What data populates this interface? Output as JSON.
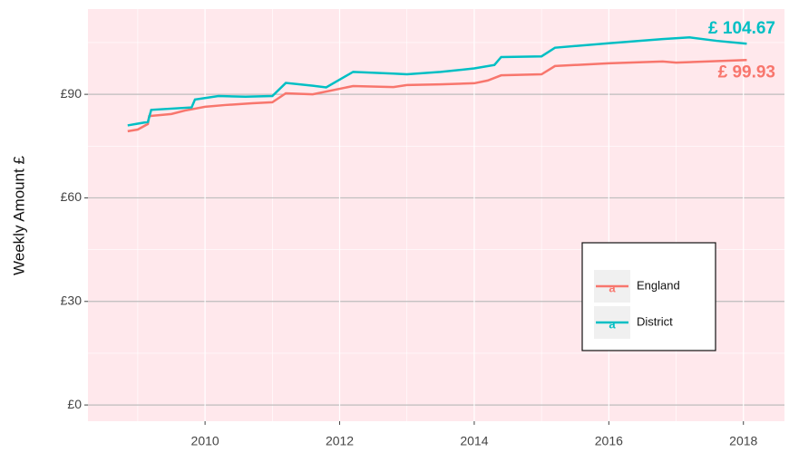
{
  "chart_data": {
    "type": "line",
    "y_label": "Weekly Amount £",
    "xlim": [
      2008.26,
      2018.61
    ],
    "xticks": [
      2010,
      2012,
      2014,
      2016,
      2018
    ],
    "ylim": [
      -4.7,
      114.7
    ],
    "yticks": [
      {
        "value": 0,
        "label": "£0"
      },
      {
        "value": 30,
        "label": "£30"
      },
      {
        "value": 60,
        "label": "£60"
      },
      {
        "value": 90,
        "label": "£90"
      }
    ],
    "grid": true,
    "legend": "bottom-right",
    "series": [
      {
        "name": "England",
        "color": "#f8766d",
        "x": [
          2008.85,
          2009.0,
          2009.15,
          2009.17,
          2009.5,
          2009.7,
          2010.0,
          2010.3,
          2010.7,
          2011.0,
          2011.2,
          2011.6,
          2012.2,
          2012.8,
          2013.0,
          2013.5,
          2014.0,
          2014.2,
          2014.4,
          2015.0,
          2015.2,
          2016.0,
          2016.8,
          2017.0,
          2018.05
        ],
        "values": [
          79.3,
          79.8,
          81.4,
          83.7,
          84.3,
          85.3,
          86.4,
          86.9,
          87.4,
          87.7,
          90.3,
          90,
          92.4,
          92.1,
          92.7,
          92.9,
          93.2,
          94,
          95.5,
          95.8,
          98.2,
          99,
          99.5,
          99.2,
          99.93
        ]
      },
      {
        "name": "District",
        "color": "#00bfc4",
        "x": [
          2008.85,
          2009.0,
          2009.15,
          2009.2,
          2009.8,
          2009.85,
          2010.2,
          2010.6,
          2011.0,
          2011.2,
          2011.6,
          2011.8,
          2012.2,
          2012.8,
          2013.0,
          2013.5,
          2014.0,
          2014.3,
          2014.4,
          2015.0,
          2015.2,
          2016.0,
          2016.8,
          2017.2,
          2017.6,
          2018.05
        ],
        "values": [
          81,
          81.5,
          82,
          85.5,
          86.2,
          88.5,
          89.5,
          89.3,
          89.5,
          93.3,
          92.5,
          92,
          96.5,
          96,
          95.8,
          96.5,
          97.5,
          98.5,
          100.8,
          101,
          103.5,
          104.8,
          106,
          106.5,
          105.5,
          104.67
        ]
      }
    ],
    "annotations": [
      "£ 99.93",
      "£ 104.67"
    ]
  }
}
